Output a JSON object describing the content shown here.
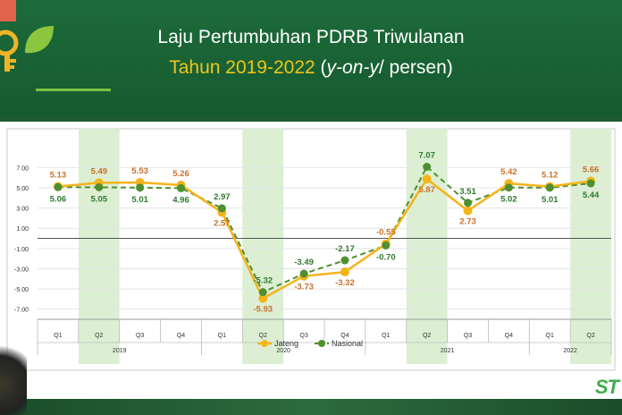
{
  "header": {
    "title_line1": "Laju Pertumbuhan PDRB Triwulanan",
    "title_year": "Tahun 2019-2022",
    "title_paren_open": " (",
    "title_yoy": "y-on-y",
    "title_rest": "/ persen)"
  },
  "logo": {
    "text": "ST"
  },
  "colors": {
    "jateng": "#f4b41a",
    "nasional": "#4f8f2f",
    "shade": "#dcefd3",
    "jateng_label": "#c8702c",
    "nasional_label": "#2f7a2f"
  },
  "chart_data": {
    "type": "line",
    "categories": [
      "Q1",
      "Q2",
      "Q3",
      "Q4",
      "Q1",
      "Q2",
      "Q3",
      "Q4",
      "Q1",
      "Q2",
      "Q3",
      "Q4",
      "Q1",
      "Q2"
    ],
    "years": [
      {
        "label": "2019",
        "span": [
          0,
          3
        ]
      },
      {
        "label": "2020",
        "span": [
          4,
          7
        ]
      },
      {
        "label": "2021",
        "span": [
          8,
          11
        ]
      },
      {
        "label": "2022",
        "span": [
          12,
          13
        ]
      }
    ],
    "shaded_columns": [
      1,
      5,
      9,
      13
    ],
    "series": [
      {
        "name": "Jateng",
        "values": [
          5.13,
          5.49,
          5.53,
          5.26,
          2.57,
          -5.93,
          -3.73,
          -3.32,
          -0.55,
          5.87,
          2.73,
          5.42,
          5.12,
          5.66
        ]
      },
      {
        "name": "Nasional",
        "values": [
          5.06,
          5.05,
          5.01,
          4.96,
          2.97,
          -5.32,
          -3.49,
          -2.17,
          -0.7,
          7.07,
          3.51,
          5.02,
          5.01,
          5.44
        ]
      }
    ],
    "jateng_labels": [
      "5.13",
      "5.49",
      "5.53",
      "5.26",
      "2.57",
      "-5.93",
      "-3.73",
      "-3.32",
      "-0.55",
      "5.87",
      "2.73",
      "5.42",
      "5.12",
      "5.66"
    ],
    "nasional_labels": [
      "5.06",
      "5.05",
      "5.01",
      "4.96",
      "2.97",
      "-5.32",
      "-3.49",
      "-2.17",
      "-0.70",
      "7.07",
      "3.51",
      "5.02",
      "5.01",
      "5.44"
    ],
    "yticks": [
      "7.00",
      "5.00",
      "3.00",
      "1.00",
      "-1.00",
      "-3.00",
      "-5.00",
      "-7.00"
    ],
    "ytick_values": [
      7,
      5,
      3,
      1,
      -1,
      -3,
      -5,
      -7
    ],
    "ylim": [
      -8,
      8
    ],
    "legend_position": "bottom"
  }
}
